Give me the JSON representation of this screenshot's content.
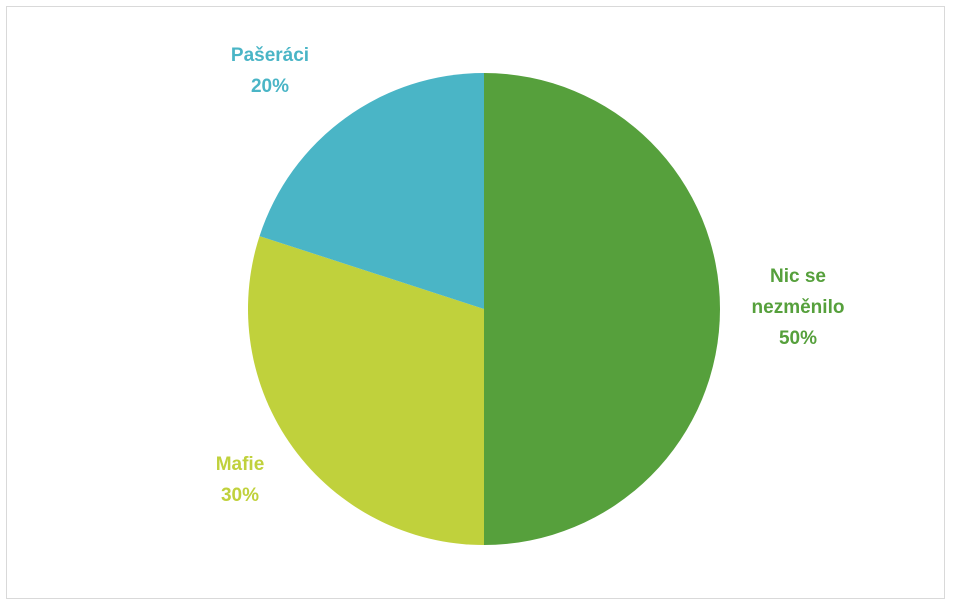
{
  "chart_data": {
    "type": "pie",
    "slices": [
      {
        "label_lines": [
          "Nic se",
          "nezměnilo"
        ],
        "percent_label": "50%",
        "value": 50,
        "color": "#56a03c"
      },
      {
        "label_lines": [
          "Mafie"
        ],
        "percent_label": "30%",
        "value": 30,
        "color": "#c0d13c"
      },
      {
        "label_lines": [
          "Pašeráci"
        ],
        "percent_label": "20%",
        "value": 20,
        "color": "#4ab5c6"
      }
    ],
    "start": "12 o'clock",
    "direction": "clockwise",
    "legend": "none"
  }
}
